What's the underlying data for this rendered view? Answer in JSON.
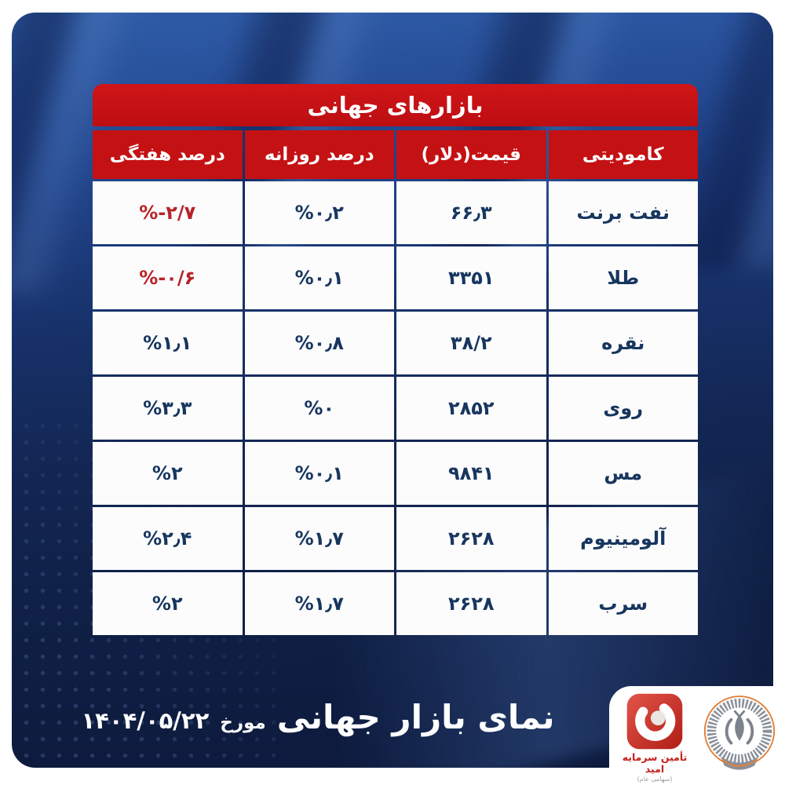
{
  "table": {
    "title": "بازارهای جهانی",
    "columns": [
      {
        "key": "commodity",
        "label": "کامودیتی"
      },
      {
        "key": "price",
        "label": "قیمت(دلار)"
      },
      {
        "key": "daily",
        "label": "درصد روزانه"
      },
      {
        "key": "weekly",
        "label": "درصد هفتگی"
      }
    ],
    "rows": [
      {
        "commodity": "نفت برنت",
        "price": "۶۶٫۳",
        "daily": "%۰٫۲",
        "weekly": "%-۲/۷"
      },
      {
        "commodity": "طلا",
        "price": "۳۳۵۱",
        "daily": "%۰٫۱",
        "weekly": "%-۰/۶"
      },
      {
        "commodity": "نقره",
        "price": "۳۸/۲",
        "daily": "%۰٫۸",
        "weekly": "%۱٫۱"
      },
      {
        "commodity": "روی",
        "price": "۲۸۵۲",
        "daily": "%۰",
        "weekly": "%۳٫۳"
      },
      {
        "commodity": "مس",
        "price": "۹۸۴۱",
        "daily": "%۰٫۱",
        "weekly": "%۲"
      },
      {
        "commodity": "آلومینیوم",
        "price": "۲۶۲۸",
        "daily": "%۱٫۷",
        "weekly": "%۲٫۴"
      },
      {
        "commodity": "سرب",
        "price": "۲۶۲۸",
        "daily": "%۱٫۷",
        "weekly": "%۲"
      }
    ]
  },
  "chart_data": {
    "type": "table",
    "title": "بازارهای جهانی",
    "columns": [
      "کامودیتی",
      "قیمت(دلار)",
      "درصد روزانه",
      "درصد هفتگی"
    ],
    "rows": [
      [
        "نفت برنت",
        66.3,
        0.2,
        -2.7
      ],
      [
        "طلا",
        3351,
        0.1,
        -0.6
      ],
      [
        "نقره",
        38.2,
        0.8,
        1.1
      ],
      [
        "روی",
        2852,
        0,
        3.3
      ],
      [
        "مس",
        9841,
        0.1,
        2
      ],
      [
        "آلومینیوم",
        2628,
        1.7,
        2.4
      ],
      [
        "سرب",
        2628,
        1.7,
        2
      ]
    ],
    "notes": "Negative weekly-change values are shown in red; all other table text is navy on white; header cells red with white text."
  },
  "footer": {
    "title": "نمای بازار جهانی",
    "dated_label": "مورخ",
    "date": "۱۴۰۴/۰۵/۲۲"
  },
  "logos": {
    "omid": {
      "name": "تأمین سرمایه امید",
      "subtitle": "(سهامی عام)"
    }
  },
  "colors": {
    "header_red": "#c41114",
    "negative_red": "#b82328",
    "cell_text_navy": "#17365f",
    "background_navy": "#132754",
    "omid_red": "#c5211b",
    "sepah_gray": "#80868f",
    "sepah_orange": "#e0813a"
  }
}
